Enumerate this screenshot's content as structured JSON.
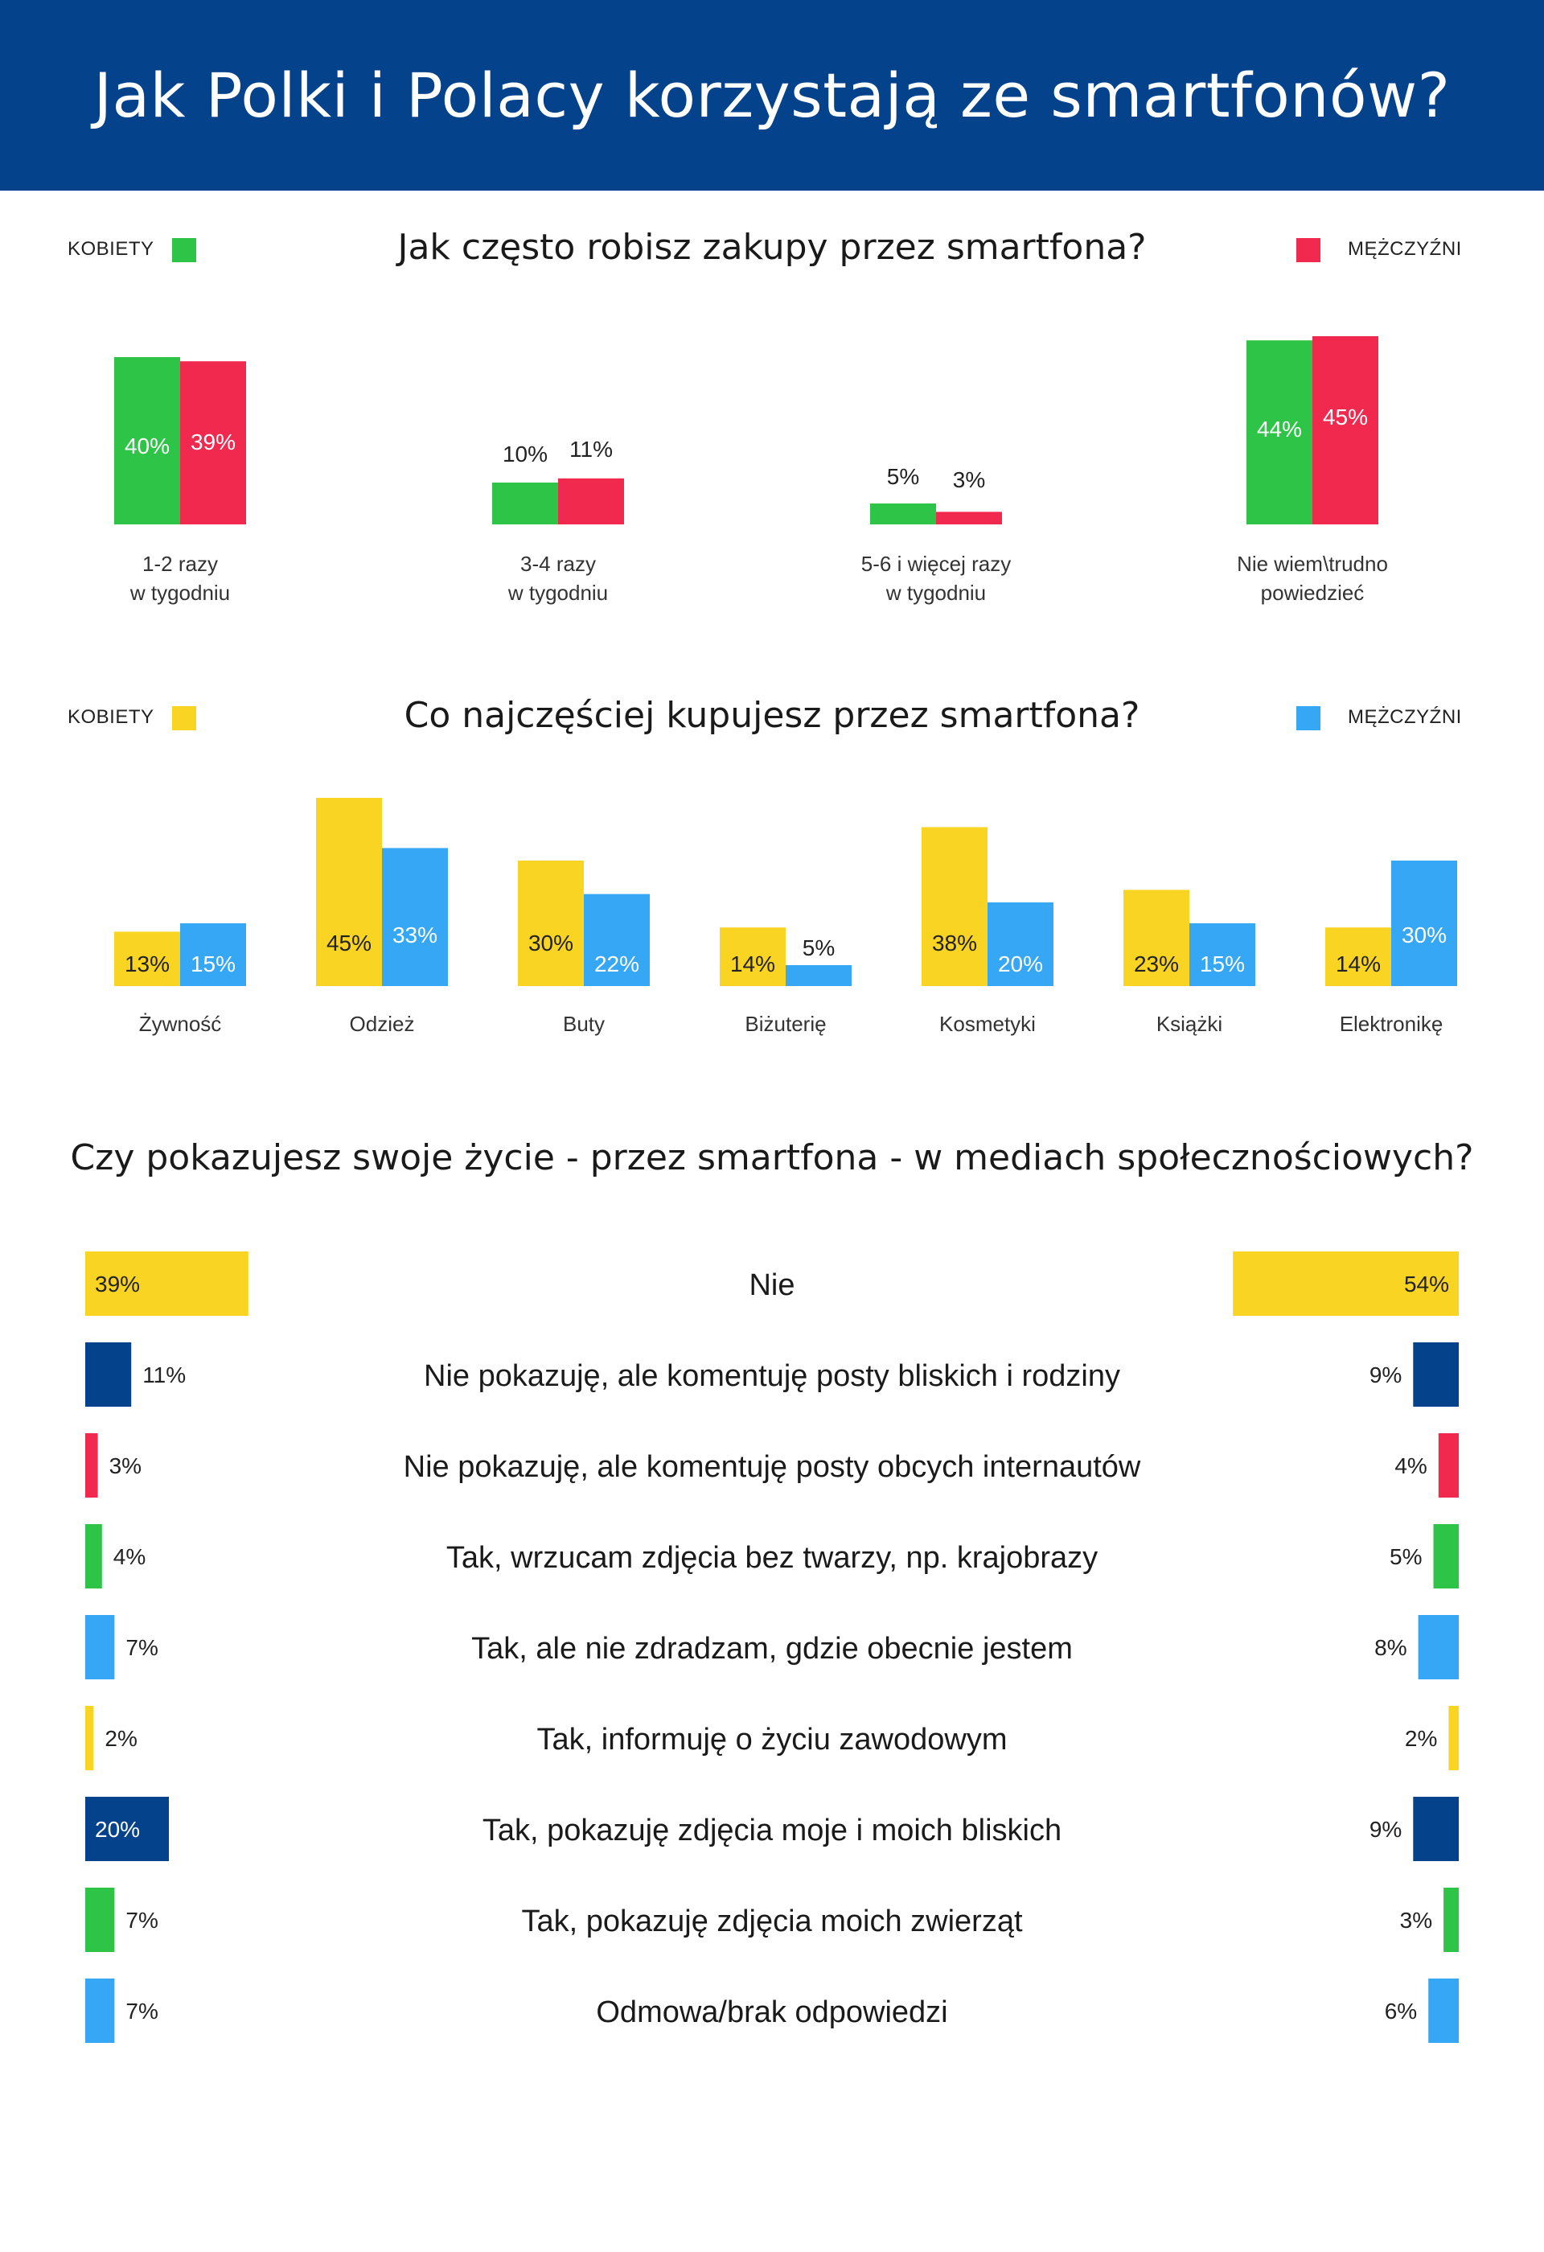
{
  "header": {
    "title": "Jak Polki i Polacy korzystają ze smartfonów?"
  },
  "legend": {
    "women": "KOBIETY",
    "men": "MĘŻCZYŹNI"
  },
  "colors": {
    "header": "#05428c",
    "green": "#2ec447",
    "red": "#f2294f",
    "yellow": "#f9d423",
    "blue": "#36a7f5",
    "navy": "#05428c"
  },
  "chart_data": [
    {
      "type": "bar",
      "title": "Jak często robisz zakupy przez smartfona?",
      "categories": [
        "1-2 razy\nw tygodniu",
        "3-4 razy\nw tygodniu",
        "5-6 i więcej razy\nw tygodniu",
        "Nie wiem\\trudno\npowiedzieć"
      ],
      "series": [
        {
          "name": "KOBIETY",
          "values": [
            40,
            10,
            5,
            44
          ],
          "labels": [
            "40%",
            "10%",
            "5%",
            "44%"
          ]
        },
        {
          "name": "MĘŻCZYŹNI",
          "values": [
            39,
            11,
            3,
            45
          ],
          "labels": [
            "39%",
            "11%",
            "3%",
            "45%"
          ]
        }
      ]
    },
    {
      "type": "bar",
      "title": "Co najczęściej kupujesz przez smartfona?",
      "categories": [
        "Żywność",
        "Odzież",
        "Buty",
        "Biżuterię",
        "Kosmetyki",
        "Książki",
        "Elektronikę"
      ],
      "series": [
        {
          "name": "KOBIETY",
          "values": [
            13,
            45,
            30,
            14,
            38,
            23,
            14
          ],
          "labels": [
            "13%",
            "45%",
            "30%",
            "14%",
            "38%",
            "23%",
            "14%"
          ]
        },
        {
          "name": "MĘŻCZYŹNI",
          "values": [
            15,
            33,
            22,
            5,
            20,
            15,
            30
          ],
          "labels": [
            "15%",
            "33%",
            "22%",
            "5%",
            "20%",
            "15%",
            "30%"
          ]
        }
      ]
    },
    {
      "type": "bar",
      "title": "Czy pokazujesz swoje życie - przez smartfona - w mediach społecznościowych?",
      "categories": [
        "Nie",
        "Nie pokazuję, ale komentuję posty bliskich i rodziny",
        "Nie pokazuję, ale komentuję posty obcych internautów",
        "Tak, wrzucam zdjęcia bez twarzy, np. krajobrazy",
        "Tak, ale nie zdradzam, gdzie obecnie jestem",
        "Tak, informuję o życiu zawodowym",
        "Tak, pokazuję zdjęcia moje i moich bliskich",
        "Tak, pokazuję zdjęcia moich zwierząt",
        "Odmowa/brak odpowiedzi"
      ],
      "row_colors": [
        "yellow",
        "navy",
        "red",
        "green",
        "blue",
        "yellow",
        "navy",
        "green",
        "blue"
      ],
      "series": [
        {
          "values": [
            39,
            11,
            3,
            4,
            7,
            2,
            20,
            7,
            7
          ],
          "labels": [
            "39%",
            "11%",
            "3%",
            "4%",
            "7%",
            "2%",
            "20%",
            "7%",
            "7%"
          ]
        },
        {
          "values": [
            54,
            9,
            4,
            5,
            8,
            2,
            9,
            3,
            6
          ],
          "labels": [
            "54%",
            "9%",
            "4%",
            "5%",
            "8%",
            "2%",
            "9%",
            "3%",
            "6%"
          ]
        }
      ]
    }
  ]
}
